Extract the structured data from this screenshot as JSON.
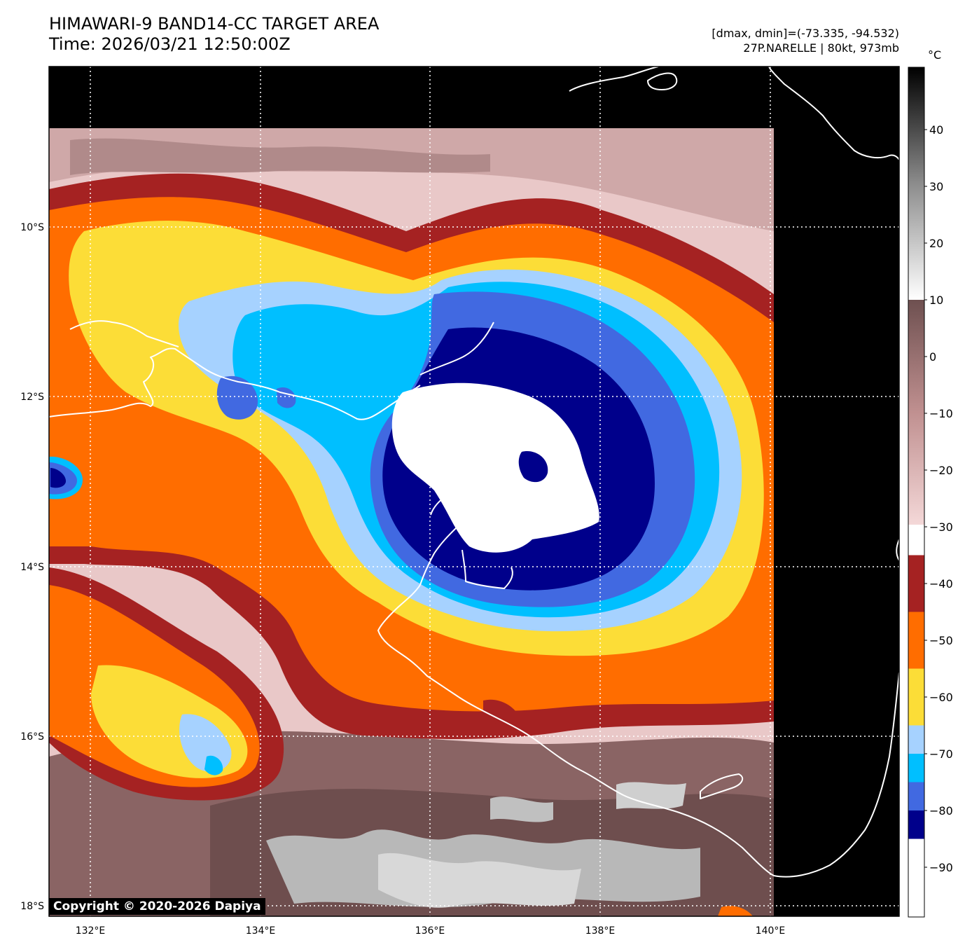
{
  "header": {
    "title": "HIMAWARI-9 BAND14-CC TARGET AREA",
    "time": "Time: 2026/03/21 12:50:00Z",
    "range": "[dmax, dmin]=(-73.335, -94.532)",
    "storm": "27P.NARELLE | 80kt, 973mb"
  },
  "map": {
    "lon_ticks": [
      "132°E",
      "134°E",
      "136°E",
      "138°E",
      "140°E"
    ],
    "lat_ticks": [
      "10°S",
      "12°S",
      "14°S",
      "16°S",
      "18°S"
    ]
  },
  "colorbar": {
    "unit": "°C",
    "tick_labels": [
      "40",
      "30",
      "20",
      "10",
      "0",
      "−10",
      "−20",
      "−30",
      "−40",
      "−50",
      "−60",
      "−70",
      "−80",
      "−90"
    ],
    "bands": [
      {
        "from": -100,
        "to": -85,
        "color": "#ffffff"
      },
      {
        "from": -85,
        "to": -80,
        "color": "#00008b"
      },
      {
        "from": -80,
        "to": -75,
        "color": "#4169e1"
      },
      {
        "from": -75,
        "to": -70,
        "color": "#00bfff"
      },
      {
        "from": -70,
        "to": -65,
        "color": "#a6d2ff"
      },
      {
        "from": -65,
        "to": -55,
        "color": "#fcdd37"
      },
      {
        "from": -55,
        "to": -45,
        "color": "#ff6d00"
      },
      {
        "from": -45,
        "to": -35,
        "color": "#a52222"
      }
    ]
  },
  "copyright": "Copyright © 2020-2026 Dapiya"
}
